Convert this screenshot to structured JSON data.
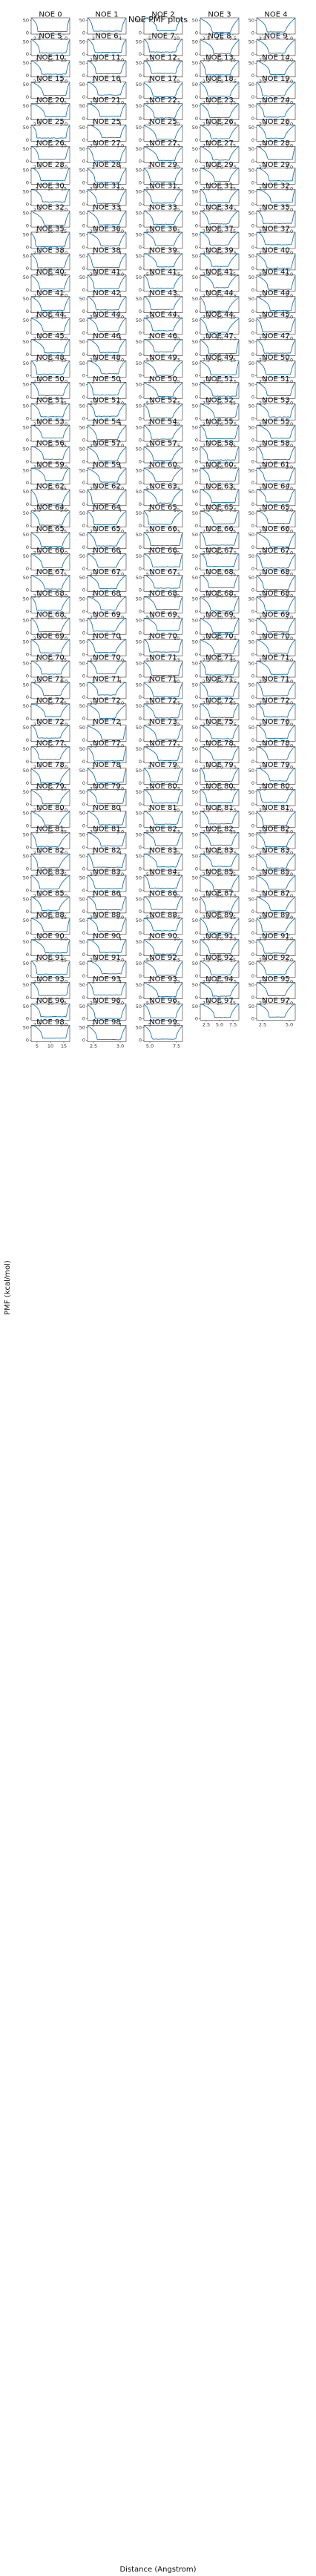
{
  "figure": {
    "suptitle": "NOE PMF plots",
    "xlabel": "Distance (Angstrom)",
    "ylabel": "PMF (kcal/mol)",
    "line_color": "#1f77b4"
  },
  "chart_data": {
    "type": "line",
    "title": "NOE PMF plots",
    "xlabel": "Distance (Angstrom)",
    "ylabel": "PMF (kcal/mol)",
    "grid": false,
    "layout": "grid of small multiples, 5 per row",
    "panel_titles": [
      "NOE 0",
      "NOE 1",
      "NOE 2",
      "NOE 3",
      "NOE 4",
      "NOE 5",
      "NOE 6",
      "NOE 7",
      "NOE 8",
      "NOE 9",
      "NOE 10",
      "NOE 11",
      "NOE 12",
      "NOE 13",
      "NOE 14",
      "NOE 15",
      "NOE 16",
      "NOE 17",
      "NOE 18",
      "NOE 19",
      "NOE 20",
      "NOE 21",
      "NOE 22",
      "NOE 23",
      "NOE 24",
      "NOE 25",
      "NOE 25",
      "NOE 25",
      "NOE 26",
      "NOE 26",
      "NOE 26",
      "NOE 27",
      "NOE 27",
      "NOE 27",
      "NOE 28",
      "NOE 28",
      "NOE 28",
      "NOE 29",
      "NOE 29",
      "NOE 29",
      "NOE 30",
      "NOE 31",
      "NOE 31",
      "NOE 31",
      "NOE 32",
      "NOE 32",
      "NOE 33",
      "NOE 33",
      "NOE 34",
      "NOE 35",
      "NOE 35",
      "NOE 36",
      "NOE 36",
      "NOE 37",
      "NOE 37",
      "NOE 38",
      "NOE 38",
      "NOE 39",
      "NOE 39",
      "NOE 40",
      "NOE 40",
      "NOE 41",
      "NOE 41",
      "NOE 41",
      "NOE 41",
      "NOE 41",
      "NOE 42",
      "NOE 43",
      "NOE 44",
      "NOE 44",
      "NOE 44",
      "NOE 44",
      "NOE 44",
      "NOE 44",
      "NOE 45",
      "NOE 45",
      "NOE 46",
      "NOE 46",
      "NOE 47",
      "NOE 47",
      "NOE 48",
      "NOE 48",
      "NOE 49",
      "NOE 49",
      "NOE 50",
      "NOE 50",
      "NOE 50",
      "NOE 50",
      "NOE 51",
      "NOE 51",
      "NOE 51",
      "NOE 51",
      "NOE 52",
      "NOE 52",
      "NOE 53",
      "NOE 53",
      "NOE 54",
      "NOE 54",
      "NOE 55",
      "NOE 55",
      "NOE 56",
      "NOE 57",
      "NOE 57",
      "NOE 58",
      "NOE 58",
      "NOE 59",
      "NOE 59",
      "NOE 60",
      "NOE 60",
      "NOE 61",
      "NOE 62",
      "NOE 62",
      "NOE 63",
      "NOE 63",
      "NOE 64",
      "NOE 64",
      "NOE 64",
      "NOE 65",
      "NOE 65",
      "NOE 65",
      "NOE 65",
      "NOE 65",
      "NOE 66",
      "NOE 66",
      "NOE 66",
      "NOE 66",
      "NOE 66",
      "NOE 66",
      "NOE 67",
      "NOE 67",
      "NOE 67",
      "NOE 67",
      "NOE 67",
      "NOE 68",
      "NOE 68",
      "NOE 68",
      "NOE 68",
      "NOE 68",
      "NOE 68",
      "NOE 68",
      "NOE 68",
      "NOE 69",
      "NOE 69",
      "NOE 69",
      "NOE 69",
      "NOE 69",
      "NOE 70",
      "NOE 70",
      "NOE 70",
      "NOE 70",
      "NOE 70",
      "NOE 70",
      "NOE 71",
      "NOE 71",
      "NOE 71",
      "NOE 71",
      "NOE 71",
      "NOE 71",
      "NOE 71",
      "NOE 71",
      "NOE 72",
      "NOE 72",
      "NOE 72",
      "NOE 72",
      "NOE 72",
      "NOE 72",
      "NOE 72",
      "NOE 73",
      "NOE 75",
      "NOE 76",
      "NOE 77",
      "NOE 77",
      "NOE 77",
      "NOE 78",
      "NOE 78",
      "NOE 78",
      "NOE 78",
      "NOE 79",
      "NOE 79",
      "NOE 79",
      "NOE 79",
      "NOE 79",
      "NOE 80",
      "NOE 80",
      "NOE 80",
      "NOE 80",
      "NOE 80",
      "NOE 81",
      "NOE 81",
      "NOE 81",
      "NOE 81",
      "NOE 81",
      "NOE 82",
      "NOE 82",
      "NOE 82",
      "NOE 82",
      "NOE 82",
      "NOE 83",
      "NOE 83",
      "NOE 83",
      "NOE 83",
      "NOE 83",
      "NOE 84",
      "NOE 85",
      "NOE 85",
      "NOE 85",
      "NOE 86",
      "NOE 86",
      "NOE 87",
      "NOE 87",
      "NOE 88",
      "NOE 88",
      "NOE 88",
      "NOE 89",
      "NOE 89",
      "NOE 90",
      "NOE 90",
      "NOE 90",
      "NOE 91",
      "NOE 91",
      "NOE 91",
      "NOE 91",
      "NOE 92",
      "NOE 92",
      "NOE 92",
      "NOE 93",
      "NOE 93",
      "NOE 93",
      "NOE 94",
      "NOE 95",
      "NOE 96",
      "NOE 96",
      "NOE 96",
      "NOE 97",
      "NOE 97",
      "NOE 98",
      "NOE 98",
      "NOE 99"
    ],
    "yticks": [
      0,
      50
    ],
    "ylim": [
      -5,
      60
    ],
    "xtick_sets": [
      [
        "2.5",
        "5.0"
      ],
      [
        "2",
        "4"
      ],
      [
        "5",
        "10"
      ],
      [
        "2.5",
        "5.0",
        "7.5"
      ],
      [
        "2.5",
        "5.0"
      ],
      [
        "5",
        "10",
        "15"
      ],
      [
        "2.5",
        "3.0"
      ],
      [
        "5.0",
        "7.5"
      ],
      [
        "7.5",
        "10",
        "15"
      ],
      [
        "2.5",
        "5.0"
      ]
    ]
  }
}
